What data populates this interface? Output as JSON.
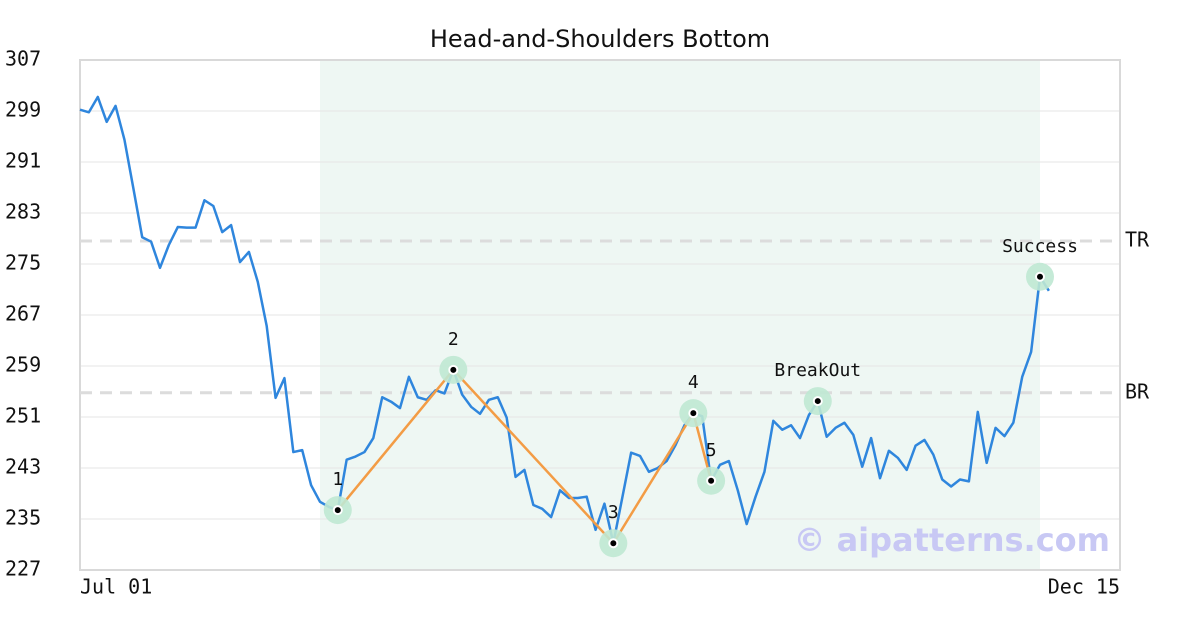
{
  "chart_data": {
    "type": "line",
    "title": "Head-and-Shoulders Bottom",
    "categories": [
      "Jul 01",
      null,
      null,
      null,
      null,
      null,
      null,
      null,
      null,
      null,
      null,
      null,
      null,
      null,
      null,
      null,
      null,
      null,
      null,
      null,
      null,
      null,
      null,
      null,
      null,
      null,
      null,
      null,
      null,
      null,
      null,
      null,
      null,
      null,
      null,
      null,
      null,
      null,
      null,
      null,
      null,
      null,
      null,
      null,
      null,
      null,
      null,
      null,
      null,
      null,
      null,
      null,
      null,
      null,
      null,
      null,
      null,
      null,
      null,
      null,
      null,
      null,
      null,
      null,
      null,
      null,
      null,
      null,
      null,
      null,
      null,
      null,
      null,
      null,
      null,
      null,
      null,
      null,
      null,
      null,
      null,
      null,
      null,
      null,
      null,
      null,
      null,
      null,
      null,
      null,
      null,
      null,
      null,
      null,
      null,
      null,
      null,
      null,
      null,
      null,
      null,
      null,
      null,
      null,
      null,
      null,
      null,
      null,
      null,
      null,
      null,
      null,
      null,
      null,
      null,
      null,
      null,
      "Dec 15"
    ],
    "values": [
      299.2,
      298.8,
      301.2,
      297.3,
      299.8,
      294.5,
      286.9,
      279.2,
      278.5,
      274.4,
      278.0,
      280.8,
      280.7,
      280.7,
      285.0,
      284.1,
      280.0,
      281.1,
      275.3,
      276.9,
      272.2,
      265.3,
      254.0,
      257.1,
      245.5,
      245.8,
      240.3,
      237.7,
      236.9,
      236.4,
      244.3,
      244.8,
      245.5,
      247.7,
      254.1,
      253.4,
      252.4,
      257.3,
      254.1,
      253.7,
      255.2,
      254.7,
      258.4,
      254.5,
      252.6,
      251.5,
      253.7,
      254.1,
      250.9,
      241.6,
      242.7,
      237.2,
      236.6,
      235.3,
      239.5,
      238.3,
      238.3,
      238.5,
      233.3,
      237.4,
      231.2,
      238.3,
      245.4,
      244.9,
      242.4,
      243.0,
      244.1,
      246.6,
      249.7,
      251.6,
      251.1,
      241.0,
      243.5,
      244.1,
      239.5,
      234.2,
      238.5,
      242.4,
      250.4,
      249.0,
      249.7,
      247.7,
      251.3,
      253.5,
      247.9,
      249.3,
      250.1,
      248.2,
      243.2,
      247.7,
      241.4,
      245.7,
      244.6,
      242.7,
      246.5,
      247.4,
      245.1,
      241.2,
      240.1,
      241.2,
      240.9,
      251.8,
      243.8,
      249.3,
      248.0,
      250.1,
      257.3,
      261.2,
      273.0,
      270.8,
      null,
      null,
      null,
      null,
      null,
      null,
      null,
      null
    ],
    "color": "#2f86dd",
    "ylim": [
      227,
      307
    ],
    "yticks": [
      227,
      235,
      243,
      251,
      259,
      267,
      275,
      283,
      291,
      299,
      307
    ],
    "grid": true,
    "shade": {
      "from": 27,
      "to": 108,
      "color": "#eef7f3"
    },
    "pattern": {
      "color": "#f39c45",
      "points": [
        {
          "label": "1",
          "x": 29,
          "y": 236.4
        },
        {
          "label": "2",
          "x": 42,
          "y": 258.4
        },
        {
          "label": "3",
          "x": 60,
          "y": 231.2
        },
        {
          "label": "4",
          "x": 69,
          "y": 251.6
        },
        {
          "label": "5",
          "x": 71,
          "y": 241.0
        }
      ]
    },
    "signals": [
      {
        "label": "BreakOut",
        "x": 83,
        "y": 253.5
      },
      {
        "label": "Success",
        "x": 108,
        "y": 273.0
      }
    ],
    "levels": [
      {
        "label": "TR",
        "value": 278.6
      },
      {
        "label": "BR",
        "value": 254.8
      }
    ],
    "watermark": "© aipatterns.com"
  }
}
